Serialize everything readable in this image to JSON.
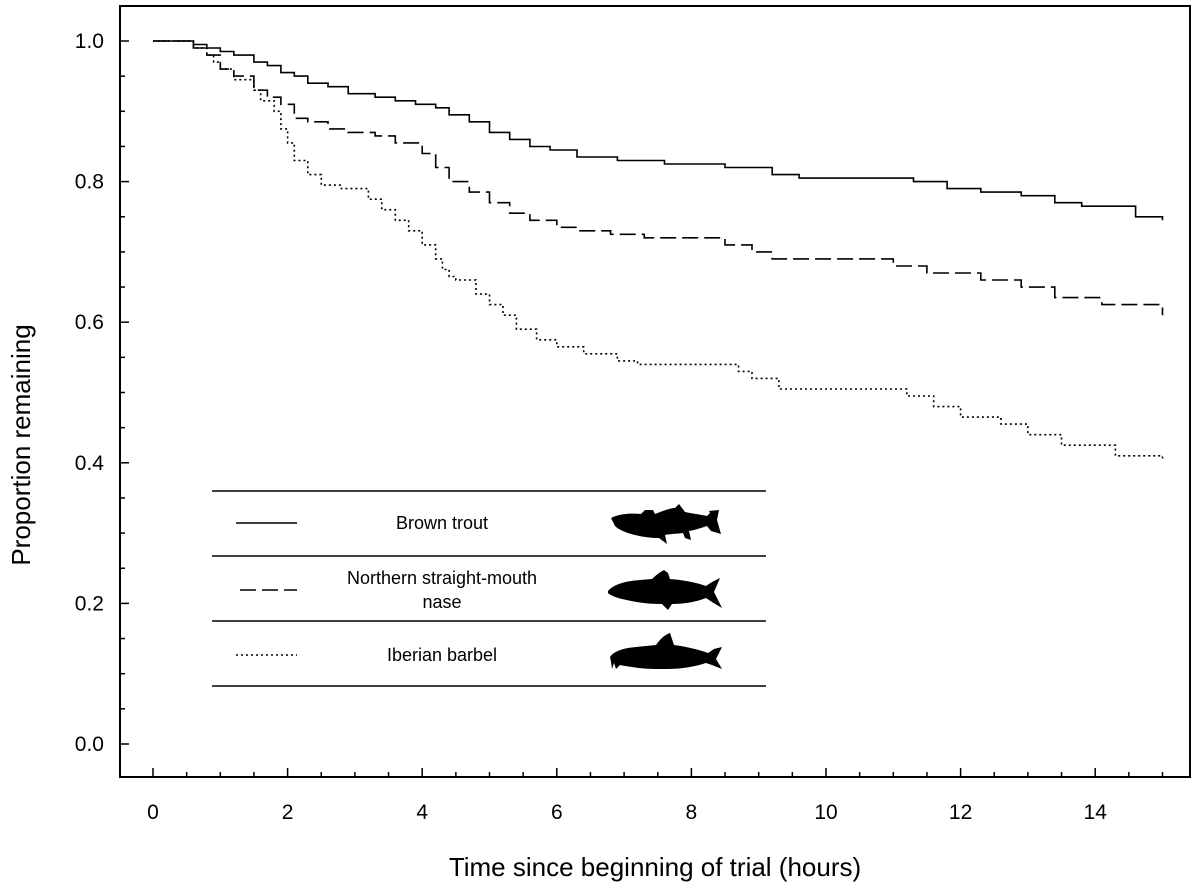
{
  "chart_data": {
    "type": "line",
    "step": true,
    "xlabel": "Time since beginning of trial (hours)",
    "ylabel": "Proportion remaining",
    "xlim": [
      -0.5,
      15.5
    ],
    "ylim": [
      -0.05,
      1.05
    ],
    "xticks": [
      0,
      2,
      4,
      6,
      8,
      10,
      12,
      14
    ],
    "yticks": [
      0.0,
      0.2,
      0.4,
      0.6,
      0.8,
      1.0
    ],
    "xtick_labels": [
      "0",
      "2",
      "4",
      "6",
      "8",
      "10",
      "12",
      "14"
    ],
    "ytick_labels": [
      "0.0",
      "0.2",
      "0.4",
      "0.6",
      "0.8",
      "1.0"
    ],
    "grid": false,
    "legend_position": "lower-left",
    "series": [
      {
        "name": "Brown trout",
        "style": "solid",
        "x": [
          0,
          0.6,
          0.8,
          1.0,
          1.2,
          1.5,
          1.7,
          1.9,
          2.1,
          2.3,
          2.6,
          2.9,
          3.3,
          3.6,
          3.9,
          4.2,
          4.4,
          4.7,
          5.0,
          5.3,
          5.6,
          5.9,
          6.3,
          6.9,
          7.6,
          8.5,
          9.2,
          9.6,
          11.3,
          11.8,
          12.3,
          12.9,
          13.4,
          13.8,
          14.6,
          15.0
        ],
        "y": [
          1.0,
          0.995,
          0.99,
          0.985,
          0.98,
          0.97,
          0.965,
          0.955,
          0.95,
          0.94,
          0.935,
          0.925,
          0.92,
          0.915,
          0.91,
          0.905,
          0.895,
          0.885,
          0.87,
          0.86,
          0.85,
          0.845,
          0.835,
          0.83,
          0.825,
          0.82,
          0.81,
          0.805,
          0.8,
          0.79,
          0.785,
          0.78,
          0.77,
          0.765,
          0.75,
          0.745
        ]
      },
      {
        "name": "Northern straight-mouth nase",
        "style": "dashed",
        "x": [
          0,
          0.6,
          0.8,
          1.0,
          1.2,
          1.5,
          1.7,
          1.9,
          2.1,
          2.3,
          2.6,
          2.9,
          3.3,
          3.6,
          4.0,
          4.2,
          4.4,
          4.7,
          5.0,
          5.3,
          5.6,
          6.0,
          6.3,
          6.8,
          7.3,
          8.5,
          8.9,
          9.2,
          11.0,
          11.5,
          12.3,
          12.9,
          13.4,
          14.1,
          15.0
        ],
        "y": [
          1.0,
          0.99,
          0.98,
          0.96,
          0.95,
          0.93,
          0.92,
          0.91,
          0.89,
          0.885,
          0.875,
          0.87,
          0.865,
          0.855,
          0.84,
          0.82,
          0.8,
          0.785,
          0.77,
          0.755,
          0.745,
          0.735,
          0.73,
          0.725,
          0.72,
          0.71,
          0.7,
          0.69,
          0.68,
          0.67,
          0.66,
          0.65,
          0.635,
          0.625,
          0.61
        ]
      },
      {
        "name": "Iberian barbel",
        "style": "dotted",
        "x": [
          0,
          0.6,
          0.8,
          0.9,
          1.0,
          1.2,
          1.5,
          1.6,
          1.8,
          1.9,
          2.0,
          2.1,
          2.3,
          2.5,
          2.8,
          3.2,
          3.4,
          3.6,
          3.8,
          4.0,
          4.2,
          4.3,
          4.4,
          4.5,
          4.8,
          5.0,
          5.2,
          5.4,
          5.7,
          6.0,
          6.4,
          6.9,
          7.2,
          8.7,
          8.9,
          9.3,
          11.2,
          11.6,
          12.0,
          12.6,
          13.0,
          13.5,
          14.3,
          15.0
        ],
        "y": [
          1.0,
          0.99,
          0.98,
          0.97,
          0.96,
          0.945,
          0.93,
          0.915,
          0.9,
          0.875,
          0.855,
          0.83,
          0.81,
          0.795,
          0.79,
          0.775,
          0.76,
          0.745,
          0.73,
          0.71,
          0.69,
          0.675,
          0.665,
          0.66,
          0.64,
          0.625,
          0.61,
          0.59,
          0.575,
          0.565,
          0.555,
          0.545,
          0.54,
          0.53,
          0.52,
          0.505,
          0.495,
          0.48,
          0.465,
          0.455,
          0.44,
          0.425,
          0.41,
          0.405
        ]
      }
    ]
  },
  "legend": {
    "entries": [
      {
        "label_lines": [
          "Brown trout"
        ],
        "style": "solid",
        "icon": "brown-trout-silhouette-icon"
      },
      {
        "label_lines": [
          "Northern straight-mouth",
          "nase"
        ],
        "style": "dashed",
        "icon": "nase-silhouette-icon"
      },
      {
        "label_lines": [
          "Iberian barbel"
        ],
        "style": "dotted",
        "icon": "barbel-silhouette-icon"
      }
    ]
  },
  "colors": {
    "ink": "#000000",
    "background": "#ffffff"
  }
}
